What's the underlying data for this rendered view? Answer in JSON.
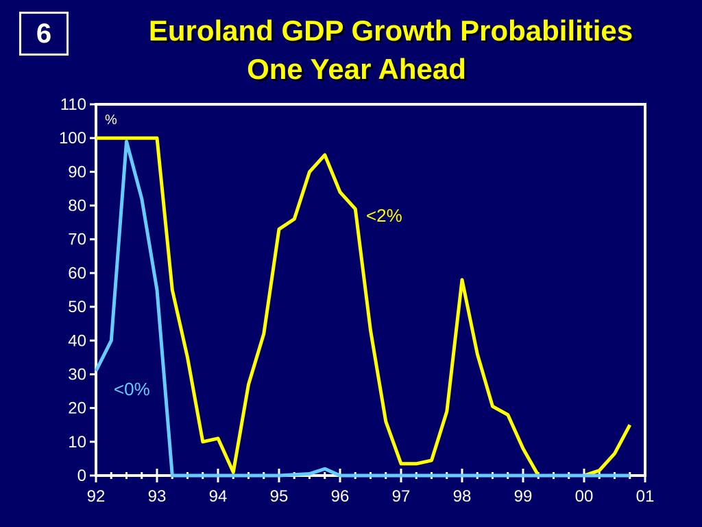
{
  "slide_number": "6",
  "title_line1": "Euroland GDP Growth Probabilities",
  "title_line2": "One Year Ahead",
  "colors": {
    "background": "#000066",
    "lt2": "#ffff00",
    "lt0": "#66ccff",
    "axis": "#ffffff"
  },
  "chart_data": {
    "type": "line",
    "ylabel": "%",
    "ylim": [
      0,
      110
    ],
    "yticks": [
      "0",
      "10",
      "20",
      "30",
      "40",
      "50",
      "60",
      "70",
      "80",
      "90",
      "100",
      "110"
    ],
    "xlim": [
      1992,
      2001
    ],
    "xticks": [
      "92",
      "93",
      "94",
      "95",
      "96",
      "97",
      "98",
      "99",
      "00",
      "01"
    ],
    "grid": false,
    "series": [
      {
        "name": "<2%",
        "color": "#ffff00",
        "x": [
          1992.0,
          1992.25,
          1992.5,
          1993.0,
          1993.25,
          1993.5,
          1993.75,
          1994.0,
          1994.25,
          1994.5,
          1994.75,
          1995.0,
          1995.25,
          1995.5,
          1995.75,
          1996.0,
          1996.25,
          1996.5,
          1996.75,
          1997.0,
          1997.25,
          1997.5,
          1997.75,
          1998.0,
          1998.25,
          1998.5,
          1998.75,
          1999.0,
          1999.25,
          1999.5,
          1999.75,
          2000.0,
          2000.25,
          2000.5,
          2000.75
        ],
        "values": [
          100,
          100,
          100,
          100,
          55,
          35,
          10,
          11,
          1,
          27,
          42,
          73,
          76,
          90,
          95,
          84,
          79,
          43,
          16,
          3.5,
          3.5,
          4.5,
          19,
          58,
          36,
          20.5,
          18,
          8,
          0,
          0,
          0,
          0,
          1.5,
          6.5,
          15
        ]
      },
      {
        "name": "<0%",
        "color": "#66ccff",
        "x": [
          1992.0,
          1992.25,
          1992.5,
          1992.75,
          1993.0,
          1993.25,
          1993.5,
          1994.0,
          1994.5,
          1995.0,
          1995.5,
          1995.75,
          1996.0,
          1996.5,
          1997.0,
          1998.0,
          1999.0,
          2000.0,
          2000.75
        ],
        "values": [
          31,
          40,
          99,
          82,
          55,
          0,
          0,
          0,
          0,
          0,
          0.5,
          2,
          0,
          0,
          0,
          0,
          0,
          0,
          0
        ]
      }
    ]
  }
}
